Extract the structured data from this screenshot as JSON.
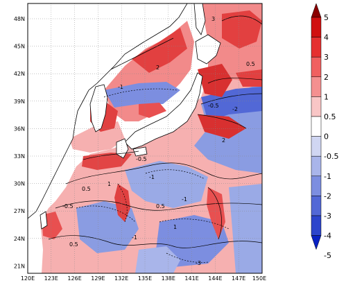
{
  "map": {
    "lat_ticks": [
      "48N",
      "45N",
      "42N",
      "39N",
      "36N",
      "33N",
      "30N",
      "27N",
      "24N",
      "21N"
    ],
    "lon_ticks": [
      "120E",
      "123E",
      "126E",
      "129E",
      "132E",
      "135E",
      "138E",
      "141E",
      "144E",
      "147E",
      "150E"
    ],
    "contour_labels": [
      "-0.5",
      "1",
      "0.5",
      "-1",
      "2",
      "-2",
      "-3",
      "3"
    ]
  },
  "colorbar": {
    "labels": [
      "5",
      "4",
      "3",
      "2",
      "1",
      "0.5",
      "0",
      "-0.5",
      "-1",
      "-2",
      "-3",
      "-4",
      "-5"
    ],
    "colors": [
      "#8b0000",
      "#d01010",
      "#e53030",
      "#f06060",
      "#f49090",
      "#f9c6c6",
      "#ffffff",
      "#d0d6f2",
      "#a9b5ea",
      "#7c8ee0",
      "#5268d6",
      "#2c45cc",
      "#0a22c4"
    ]
  }
}
